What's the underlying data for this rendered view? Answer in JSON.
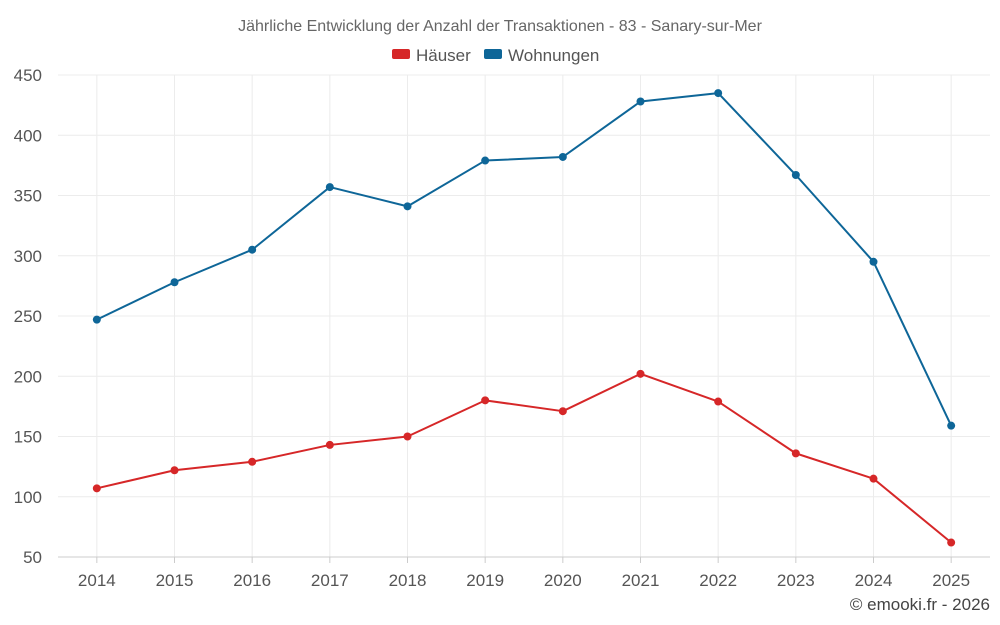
{
  "chart_data": {
    "type": "line",
    "title": "Jährliche Entwicklung der Anzahl der Transaktionen - 83 - Sanary-sur-Mer",
    "categories": [
      "2014",
      "2015",
      "2016",
      "2017",
      "2018",
      "2019",
      "2020",
      "2021",
      "2022",
      "2023",
      "2024",
      "2025"
    ],
    "series": [
      {
        "name": "Häuser",
        "color": "#d62728",
        "values": [
          107,
          122,
          129,
          143,
          150,
          180,
          171,
          202,
          179,
          136,
          115,
          62
        ]
      },
      {
        "name": "Wohnungen",
        "color": "#0e6698",
        "values": [
          247,
          278,
          305,
          357,
          341,
          379,
          382,
          428,
          435,
          367,
          295,
          159
        ]
      }
    ],
    "ylim": [
      50,
      450
    ],
    "yticks": [
      50,
      100,
      150,
      200,
      250,
      300,
      350,
      400,
      450
    ],
    "xlabel": "",
    "ylabel": "",
    "grid": true,
    "legend_position": "top-center"
  },
  "credit": "© emooki.fr - 2026"
}
